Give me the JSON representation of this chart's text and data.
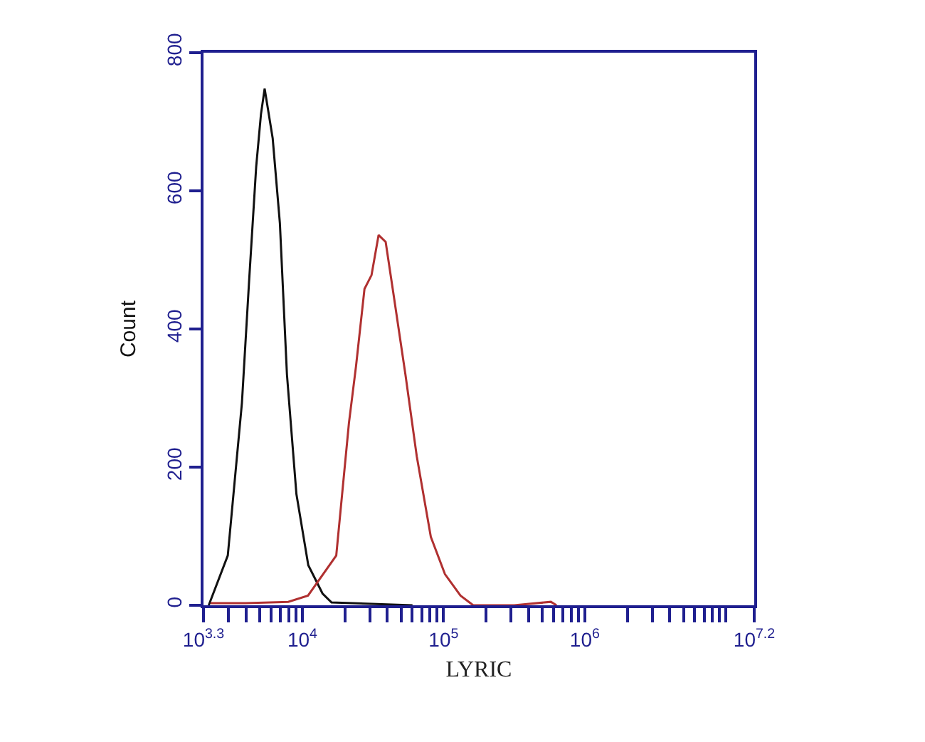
{
  "chart_data": {
    "type": "line",
    "xlabel": "LYRIC",
    "ylabel": "Count",
    "log": "x",
    "marker": "none",
    "line_style": "solid",
    "xlim": [
      1995.26,
      15848932
    ],
    "xticks": [
      {
        "value": 1995.26,
        "label": "10$^{3.3}$"
      },
      {
        "value": 2000,
        "label": null
      },
      {
        "value": 3000,
        "label": null
      },
      {
        "value": 4000,
        "label": null
      },
      {
        "value": 5000,
        "label": null
      },
      {
        "value": 6000,
        "label": null
      },
      {
        "value": 7000,
        "label": null
      },
      {
        "value": 8000,
        "label": null
      },
      {
        "value": 9000,
        "label": null
      },
      {
        "value": 10000,
        "label": "10$^{4}$"
      },
      {
        "value": 20000,
        "label": null
      },
      {
        "value": 30000,
        "label": null
      },
      {
        "value": 40000,
        "label": null
      },
      {
        "value": 50000,
        "label": null
      },
      {
        "value": 60000,
        "label": null
      },
      {
        "value": 70000,
        "label": null
      },
      {
        "value": 80000,
        "label": null
      },
      {
        "value": 90000,
        "label": null
      },
      {
        "value": 100000,
        "label": "10$^{5}$"
      },
      {
        "value": 200000,
        "label": null
      },
      {
        "value": 300000,
        "label": null
      },
      {
        "value": 400000,
        "label": null
      },
      {
        "value": 500000,
        "label": null
      },
      {
        "value": 600000,
        "label": null
      },
      {
        "value": 700000,
        "label": null
      },
      {
        "value": 800000,
        "label": null
      },
      {
        "value": 900000,
        "label": null
      },
      {
        "value": 1000000,
        "label": "10$^{6}$"
      },
      {
        "value": 2000000,
        "label": null
      },
      {
        "value": 3000000,
        "label": null
      },
      {
        "value": 4000000,
        "label": null
      },
      {
        "value": 5000000,
        "label": null
      },
      {
        "value": 6000000,
        "label": null
      },
      {
        "value": 7000000,
        "label": null
      },
      {
        "value": 8000000,
        "label": null
      },
      {
        "value": 9000000,
        "label": null
      },
      {
        "value": 10000000,
        "label": null
      },
      {
        "value": 15848932,
        "label": "10$^{7.2}$"
      }
    ],
    "ylim": [
      0,
      800
    ],
    "yticks": [
      0,
      200,
      400,
      600,
      800
    ],
    "series": [
      {
        "color": "#111111",
        "x": [
          2173,
          2965,
          3733,
          4198,
          4710,
          5093,
          5408,
          6166,
          6934,
          7780,
          9078,
          11015,
          13900,
          16106,
          60256
        ],
        "values": [
          0,
          72,
          293,
          470,
          635,
          711,
          748,
          676,
          553,
          334,
          161,
          58,
          17,
          4,
          0
        ]
      },
      {
        "color": "#b03030",
        "x": [
          2239,
          3981,
          7943,
          10965,
          17378,
          21380,
          23988,
          27542,
          30903,
          34674,
          38905,
          43652,
          53703,
          64565,
          81283,
          102329,
          131826,
          162181,
          316228,
          575440,
          630957
        ],
        "values": [
          3,
          3,
          5,
          14,
          72,
          264,
          346,
          458,
          478,
          536,
          526,
          458,
          334,
          216,
          99,
          45,
          14,
          0,
          0,
          5,
          0
        ]
      }
    ]
  }
}
